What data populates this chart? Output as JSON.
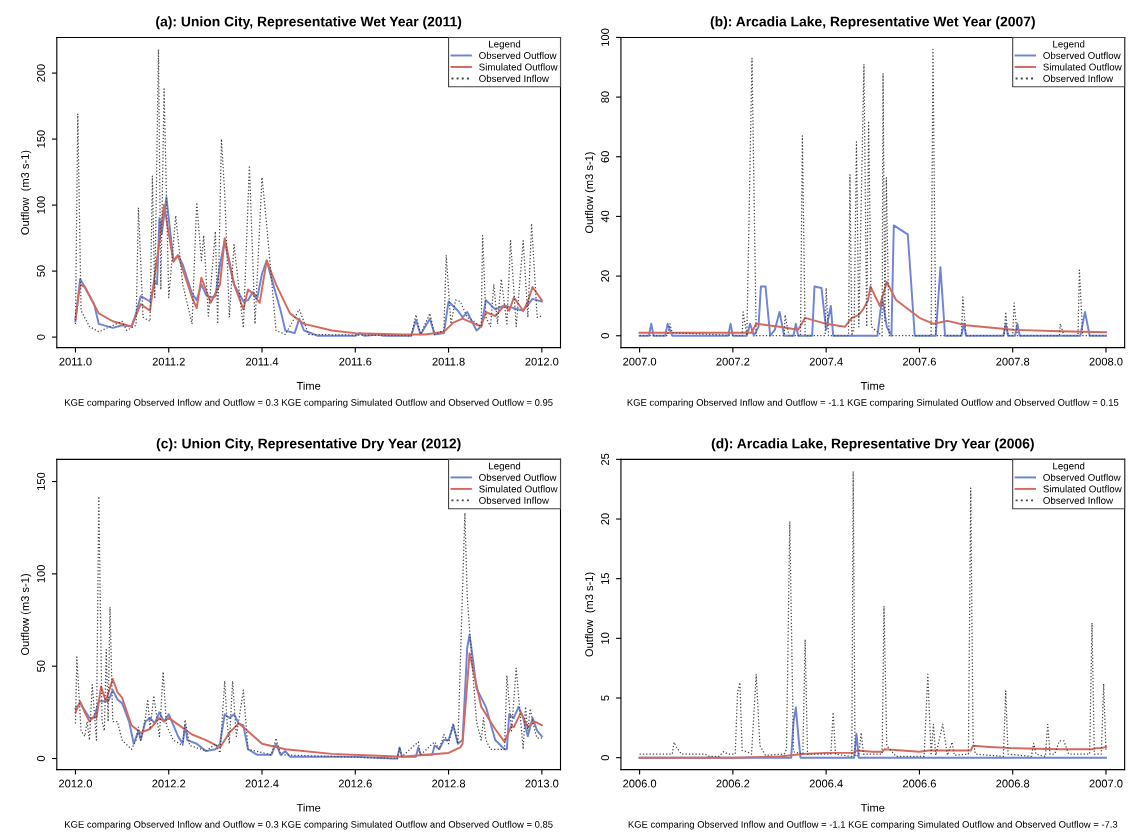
{
  "chart_data": [
    {
      "type": "line",
      "title": "(a): Union City, Representative Wet Year (2011)",
      "xlabel": "Time",
      "ylabel": "Outflow  (m3 s-1)",
      "legend_title": "Legend",
      "legend": "top right",
      "grid": false,
      "annotations": [
        "KGE comparing Observed Inflow and Outflow = 0.3 KGE comparing Simulated Outflow and Observed Outflow = 0.95"
      ],
      "xlim": [
        2010.96,
        2012.04
      ],
      "ylim": [
        -8,
        227
      ],
      "yticks": [
        0,
        50,
        100,
        150,
        200
      ],
      "xticks": [
        {
          "value": 2011.0,
          "label": "2011.0"
        },
        {
          "value": 2011.2,
          "label": "2011.2"
        },
        {
          "value": 2011.4,
          "label": "2011.4"
        },
        {
          "value": 2011.6,
          "label": "2011.6"
        },
        {
          "value": 2011.8,
          "label": "2011.8"
        },
        {
          "value": 2012.0,
          "label": "2012.0"
        }
      ],
      "series": [
        {
          "name": "Observed Outflow",
          "color": "#6f84d6",
          "line_style": "solid",
          "x": [
            2011.0,
            2011.01,
            2011.02,
            2011.04,
            2011.05,
            2011.08,
            2011.1,
            2011.12,
            2011.13,
            2011.14,
            2011.16,
            2011.17,
            2011.175,
            2011.18,
            2011.185,
            2011.195,
            2011.21,
            2011.22,
            2011.23,
            2011.25,
            2011.26,
            2011.27,
            2011.28,
            2011.29,
            2011.3,
            2011.31,
            2011.32,
            2011.33,
            2011.34,
            2011.36,
            2011.37,
            2011.38,
            2011.39,
            2011.4,
            2011.41,
            2011.42,
            2011.44,
            2011.45,
            2011.47,
            2011.48,
            2011.49,
            2011.52,
            2011.6,
            2011.61,
            2011.62,
            2011.65,
            2011.66,
            2011.72,
            2011.73,
            2011.74,
            2011.76,
            2011.77,
            2011.79,
            2011.8,
            2011.82,
            2011.83,
            2011.84,
            2011.86,
            2011.87,
            2011.88,
            2011.9,
            2011.92,
            2011.96,
            2011.98,
            2012.0
          ],
          "values": [
            12,
            44,
            38,
            25,
            10,
            7,
            9,
            8,
            18,
            31,
            27,
            42,
            40,
            90,
            78,
            106,
            58,
            62,
            55,
            33,
            28,
            40,
            32,
            30,
            31,
            55,
            73,
            55,
            40,
            27,
            28,
            34,
            30,
            48,
            58,
            45,
            20,
            5,
            3,
            14,
            5,
            1,
            1,
            3,
            1,
            2,
            1,
            1,
            13,
            2,
            14,
            2,
            3,
            27,
            20,
            15,
            19,
            5,
            8,
            28,
            21,
            24,
            20,
            29,
            27
          ]
        },
        {
          "name": "Simulated Outflow",
          "color": "#d46a5f",
          "line_style": "solid",
          "x": [
            2011.0,
            2011.01,
            2011.02,
            2011.05,
            2011.08,
            2011.12,
            2011.14,
            2011.16,
            2011.17,
            2011.18,
            2011.19,
            2011.21,
            2011.22,
            2011.25,
            2011.26,
            2011.27,
            2011.29,
            2011.31,
            2011.32,
            2011.34,
            2011.36,
            2011.37,
            2011.38,
            2011.395,
            2011.41,
            2011.43,
            2011.46,
            2011.49,
            2011.55,
            2011.6,
            2011.7,
            2011.75,
            2011.79,
            2011.81,
            2011.83,
            2011.87,
            2011.88,
            2011.9,
            2011.92,
            2011.93,
            2011.94,
            2011.96,
            2011.97,
            2011.98,
            2012.0
          ],
          "values": [
            14,
            40,
            38,
            18,
            12,
            8,
            25,
            20,
            47,
            72,
            100,
            57,
            62,
            30,
            22,
            45,
            26,
            40,
            75,
            40,
            21,
            36,
            33,
            26,
            58,
            40,
            18,
            10,
            5,
            3,
            2,
            2,
            4,
            11,
            14,
            8,
            19,
            16,
            24,
            20,
            30,
            20,
            27,
            38,
            28
          ]
        },
        {
          "name": "Observed Inflow",
          "color": "#444444",
          "line_style": "dotted",
          "x": [
            2011.0,
            2011.005,
            2011.012,
            2011.03,
            2011.05,
            2011.1,
            2011.11,
            2011.13,
            2011.135,
            2011.145,
            2011.16,
            2011.165,
            2011.17,
            2011.178,
            2011.183,
            2011.19,
            2011.2,
            2011.215,
            2011.23,
            2011.25,
            2011.26,
            2011.27,
            2011.275,
            2011.285,
            2011.3,
            2011.305,
            2011.313,
            2011.32,
            2011.33,
            2011.34,
            2011.36,
            2011.373,
            2011.385,
            2011.4,
            2011.41,
            2011.43,
            2011.45,
            2011.48,
            2011.5,
            2011.72,
            2011.73,
            2011.74,
            2011.76,
            2011.77,
            2011.79,
            2011.795,
            2011.805,
            2011.815,
            2011.825,
            2011.84,
            2011.87,
            2011.873,
            2011.88,
            2011.89,
            2011.897,
            2011.905,
            2011.913,
            2011.925,
            2011.933,
            2011.945,
            2011.96,
            2011.97,
            2011.978,
            2011.99,
            2012.0
          ],
          "values": [
            10,
            169,
            20,
            8,
            4,
            12,
            5,
            9,
            98,
            15,
            12,
            122,
            30,
            218,
            36,
            188,
            30,
            92,
            40,
            10,
            102,
            58,
            77,
            16,
            80,
            10,
            150,
            109,
            15,
            70,
            7,
            130,
            10,
            121,
            85,
            5,
            2,
            21,
            2,
            1,
            17,
            2,
            18,
            2,
            5,
            62,
            10,
            28,
            27,
            15,
            8,
            77,
            15,
            8,
            40,
            10,
            44,
            10,
            73,
            8,
            73,
            15,
            86,
            15,
            16
          ]
        }
      ]
    },
    {
      "type": "line",
      "title": "(b): Arcadia Lake, Representative Wet Year (2007)",
      "xlabel": "Time",
      "ylabel": "Outflow (m3 s-1)",
      "legend_title": "Legend",
      "legend": "top right",
      "grid": false,
      "annotations": [
        "KGE comparing Observed Inflow and Outflow = -1.1 KGE comparing Simulated Outflow and Observed Outflow = 0.15"
      ],
      "xlim": [
        2006.96,
        2008.04
      ],
      "ylim": [
        -4,
        100
      ],
      "yticks": [
        0,
        20,
        40,
        60,
        80,
        100
      ],
      "xticks": [
        {
          "value": 2007.0,
          "label": "2007.0"
        },
        {
          "value": 2007.2,
          "label": "2007.2"
        },
        {
          "value": 2007.4,
          "label": "2007.4"
        },
        {
          "value": 2007.6,
          "label": "2007.6"
        },
        {
          "value": 2007.8,
          "label": "2007.8"
        },
        {
          "value": 2008.0,
          "label": "2008.0"
        }
      ],
      "series": [
        {
          "name": "Observed Outflow",
          "color": "#6f84d6",
          "line_style": "solid",
          "x": [
            2007.0,
            2007.02,
            2007.025,
            2007.03,
            2007.055,
            2007.06,
            2007.07,
            2007.19,
            2007.195,
            2007.2,
            2007.23,
            2007.237,
            2007.245,
            2007.255,
            2007.26,
            2007.27,
            2007.28,
            2007.29,
            2007.3,
            2007.31,
            2007.33,
            2007.335,
            2007.34,
            2007.37,
            2007.375,
            2007.39,
            2007.4,
            2007.41,
            2007.415,
            2007.51,
            2007.52,
            2007.53,
            2007.54,
            2007.545,
            2007.575,
            2007.59,
            2007.635,
            2007.645,
            2007.655,
            2007.69,
            2007.695,
            2007.7,
            2007.78,
            2007.785,
            2007.79,
            2007.805,
            2007.81,
            2007.815,
            2007.945,
            2007.955,
            2007.965,
            2008.0
          ],
          "values": [
            0,
            0,
            4,
            0,
            0,
            4,
            0,
            0,
            4,
            0,
            0,
            4,
            0,
            3,
            16.5,
            16.5,
            0,
            2,
            8,
            0,
            0,
            4,
            0,
            0,
            16.5,
            16,
            2,
            10,
            0,
            0,
            13,
            3,
            0,
            37,
            34,
            0,
            0,
            23,
            0,
            0,
            4,
            0,
            0,
            4,
            0,
            0,
            4,
            0,
            0,
            8,
            0,
            0
          ]
        },
        {
          "name": "Simulated Outflow",
          "color": "#d46a5f",
          "line_style": "solid",
          "x": [
            2007.0,
            2007.24,
            2007.25,
            2007.3,
            2007.34,
            2007.355,
            2007.4,
            2007.44,
            2007.455,
            2007.47,
            2007.48,
            2007.49,
            2007.495,
            2007.515,
            2007.53,
            2007.55,
            2007.6,
            2007.63,
            2007.66,
            2007.7,
            2007.8,
            2007.9,
            2008.0
          ],
          "values": [
            1,
            1,
            4,
            3,
            2,
            6,
            4,
            3,
            6,
            7,
            9,
            12,
            16.5,
            10,
            18,
            12,
            6,
            4,
            5,
            3.5,
            2,
            1.5,
            1.2
          ]
        },
        {
          "name": "Observed Inflow",
          "color": "#444444",
          "line_style": "dotted",
          "x": [
            2007.0,
            2007.06,
            2007.065,
            2007.07,
            2007.22,
            2007.222,
            2007.23,
            2007.241,
            2007.25,
            2007.31,
            2007.312,
            2007.32,
            2007.345,
            2007.349,
            2007.355,
            2007.398,
            2007.4,
            2007.405,
            2007.448,
            2007.451,
            2007.455,
            2007.46,
            2007.465,
            2007.47,
            2007.481,
            2007.487,
            2007.491,
            2007.497,
            2007.52,
            2007.522,
            2007.526,
            2007.529,
            2007.535,
            2007.625,
            2007.629,
            2007.635,
            2007.69,
            2007.693,
            2007.7,
            2007.782,
            2007.785,
            2007.79,
            2007.8,
            2007.803,
            2007.81,
            2007.9,
            2007.902,
            2007.91,
            2007.94,
            2007.943,
            2007.95,
            2008.0
          ],
          "values": [
            0,
            0,
            4,
            1,
            0,
            8,
            0,
            93,
            0,
            0,
            7,
            0,
            0,
            67,
            0,
            0,
            16,
            0,
            0,
            54,
            0,
            3,
            65,
            3,
            91,
            3,
            72,
            3,
            0,
            88,
            5,
            53,
            0,
            0,
            96,
            0,
            0,
            13,
            0,
            0,
            8,
            0,
            0,
            11,
            0,
            0,
            4,
            0,
            0,
            22,
            0,
            0
          ]
        }
      ]
    },
    {
      "type": "line",
      "title": "(c): Union City, Representative Dry Year (2012)",
      "xlabel": "Time",
      "ylabel": "Outflow (m3 s-1)",
      "legend_title": "Legend",
      "legend": "top right",
      "grid": false,
      "annotations": [
        "KGE comparing Observed Inflow and Outflow = 0.3 KGE comparing Simulated Outflow and Observed Outflow = 0.85"
      ],
      "xlim": [
        2011.96,
        2013.04
      ],
      "ylim": [
        -6,
        162
      ],
      "yticks": [
        0,
        50,
        100,
        150
      ],
      "xticks": [
        {
          "value": 2012.0,
          "label": "2012.0"
        },
        {
          "value": 2012.2,
          "label": "2012.2"
        },
        {
          "value": 2012.4,
          "label": "2012.4"
        },
        {
          "value": 2012.6,
          "label": "2012.6"
        },
        {
          "value": 2012.8,
          "label": "2012.8"
        },
        {
          "value": 2013.0,
          "label": "2013.0"
        }
      ],
      "series": [
        {
          "name": "Observed Outflow",
          "color": "#6f84d6",
          "line_style": "solid",
          "x": [
            2012.0,
            2012.01,
            2012.03,
            2012.04,
            2012.05,
            2012.07,
            2012.08,
            2012.09,
            2012.1,
            2012.115,
            2012.125,
            2012.135,
            2012.14,
            2012.15,
            2012.16,
            2012.17,
            2012.18,
            2012.19,
            2012.2,
            2012.22,
            2012.23,
            2012.235,
            2012.24,
            2012.26,
            2012.28,
            2012.3,
            2012.31,
            2012.32,
            2012.33,
            2012.34,
            2012.35,
            2012.36,
            2012.37,
            2012.39,
            2012.42,
            2012.43,
            2012.44,
            2012.45,
            2012.46,
            2012.5,
            2012.6,
            2012.68,
            2012.69,
            2012.695,
            2012.7,
            2012.73,
            2012.735,
            2012.74,
            2012.765,
            2012.77,
            2012.78,
            2012.79,
            2012.8,
            2012.81,
            2012.82,
            2012.83,
            2012.84,
            2012.845,
            2012.85,
            2012.86,
            2012.88,
            2012.9,
            2012.92,
            2012.925,
            2012.93,
            2012.94,
            2012.95,
            2012.96,
            2012.97,
            2012.98,
            2012.99,
            2013.0
          ],
          "values": [
            27,
            30,
            22,
            22,
            31,
            31,
            37,
            32,
            30,
            20,
            8,
            15,
            10,
            20,
            22,
            19,
            25,
            20,
            24,
            12,
            8,
            18,
            10,
            8,
            4,
            5,
            8,
            24,
            22,
            24,
            19,
            18,
            5,
            2,
            2,
            8,
            2,
            4,
            1,
            1,
            1,
            0,
            0,
            6,
            1,
            1,
            6,
            2,
            2,
            7,
            5,
            10,
            10,
            18,
            8,
            10,
            60,
            67,
            58,
            38,
            28,
            10,
            5,
            5,
            24,
            22,
            28,
            22,
            12,
            22,
            15,
            12
          ]
        },
        {
          "name": "Simulated Outflow",
          "color": "#d46a5f",
          "line_style": "solid",
          "x": [
            2012.0,
            2012.01,
            2012.02,
            2012.03,
            2012.04,
            2012.045,
            2012.055,
            2012.065,
            2012.08,
            2012.09,
            2012.1,
            2012.12,
            2012.14,
            2012.16,
            2012.18,
            2012.19,
            2012.2,
            2012.25,
            2012.28,
            2012.31,
            2012.33,
            2012.35,
            2012.36,
            2012.4,
            2012.45,
            2012.55,
            2012.65,
            2012.7,
            2012.8,
            2012.825,
            2012.83,
            2012.845,
            2012.87,
            2012.9,
            2012.92,
            2012.935,
            2012.94,
            2012.955,
            2012.97,
            2012.985,
            2013.0
          ],
          "values": [
            25,
            31,
            25,
            20,
            23,
            22,
            39,
            31,
            43,
            36,
            33,
            18,
            14,
            16,
            22,
            20,
            22,
            13,
            10,
            6,
            14,
            19,
            17,
            8,
            5,
            2.5,
            1.5,
            1,
            3,
            6,
            8,
            57,
            28,
            16,
            9,
            18,
            17,
            25,
            17,
            20,
            18
          ]
        },
        {
          "name": "Observed Inflow",
          "color": "#444444",
          "line_style": "dotted",
          "x": [
            2012.0,
            2012.003,
            2012.012,
            2012.02,
            2012.025,
            2012.03,
            2012.036,
            2012.045,
            2012.05,
            2012.057,
            2012.062,
            2012.066,
            2012.07,
            2012.074,
            2012.08,
            2012.09,
            2012.1,
            2012.12,
            2012.13,
            2012.135,
            2012.14,
            2012.15,
            2012.155,
            2012.16,
            2012.168,
            2012.18,
            2012.188,
            2012.195,
            2012.21,
            2012.23,
            2012.235,
            2012.245,
            2012.27,
            2012.28,
            2012.3,
            2012.31,
            2012.32,
            2012.325,
            2012.33,
            2012.337,
            2012.345,
            2012.36,
            2012.37,
            2012.42,
            2012.43,
            2012.44,
            2012.69,
            2012.695,
            2012.7,
            2012.735,
            2012.74,
            2012.77,
            2012.78,
            2012.79,
            2012.8,
            2012.81,
            2012.82,
            2012.835,
            2012.84,
            2012.845,
            2012.86,
            2012.87,
            2012.875,
            2012.88,
            2012.89,
            2012.92,
            2012.925,
            2012.935,
            2012.945,
            2012.96,
            2012.965,
            2012.97,
            2012.975,
            2012.985,
            2012.99,
            2013.0
          ],
          "values": [
            19,
            55,
            15,
            12,
            20,
            10,
            40,
            10,
            142,
            20,
            15,
            59,
            20,
            82,
            20,
            20,
            10,
            5,
            10,
            17,
            10,
            22,
            32,
            16,
            34,
            12,
            47,
            18,
            10,
            7,
            21,
            7,
            5,
            4,
            8,
            3,
            42,
            20,
            8,
            42,
            12,
            37,
            5,
            2,
            11,
            2,
            0,
            6,
            1,
            9,
            2,
            9,
            5,
            13,
            8,
            19,
            8,
            133,
            88,
            70,
            20,
            10,
            22,
            10,
            5,
            5,
            45,
            15,
            49,
            5,
            28,
            15,
            27,
            15,
            11,
            11
          ]
        }
      ]
    },
    {
      "type": "line",
      "title": "(d): Arcadia Lake, Representative Dry Year (2006)",
      "xlabel": "Time",
      "ylabel": "Outflow  (m3 s-1)",
      "legend_title": "Legend",
      "legend": "top right",
      "grid": false,
      "annotations": [
        "KGE comparing Observed Inflow and Outflow = -1.1 KGE comparing Simulated Outflow and Observed Outflow = -7.3"
      ],
      "xlim": [
        2005.96,
        2007.04
      ],
      "ylim": [
        -1,
        25
      ],
      "yticks": [
        0,
        5,
        10,
        15,
        20,
        25
      ],
      "xticks": [
        {
          "value": 2006.0,
          "label": "2006.0"
        },
        {
          "value": 2006.2,
          "label": "2006.2"
        },
        {
          "value": 2006.4,
          "label": "2006.4"
        },
        {
          "value": 2006.6,
          "label": "2006.6"
        },
        {
          "value": 2006.8,
          "label": "2006.8"
        },
        {
          "value": 2007.0,
          "label": "2007.0"
        }
      ],
      "series": [
        {
          "name": "Observed Outflow",
          "color": "#6f84d6",
          "line_style": "solid",
          "x": [
            2006.0,
            2006.325,
            2006.33,
            2006.335,
            2006.34,
            2006.345,
            2006.46,
            2006.465,
            2006.47,
            2007.0
          ],
          "values": [
            0,
            0,
            3,
            4.2,
            2,
            0,
            0,
            2,
            0,
            0
          ]
        },
        {
          "name": "Simulated Outflow",
          "color": "#d46a5f",
          "line_style": "solid",
          "x": [
            2006.0,
            2006.2,
            2006.3,
            2006.35,
            2006.4,
            2006.46,
            2006.465,
            2006.5,
            2006.52,
            2006.525,
            2006.6,
            2006.62,
            2006.7,
            2006.71,
            2006.715,
            2006.75,
            2006.8,
            2006.9,
            2006.97,
            2006.98,
            2006.99,
            2007.0
          ],
          "values": [
            0,
            0,
            0.1,
            0.3,
            0.4,
            0.4,
            0.6,
            0.5,
            0.5,
            0.7,
            0.5,
            0.6,
            0.6,
            0.6,
            1.0,
            0.9,
            0.8,
            0.7,
            0.7,
            0.8,
            0.8,
            0.9
          ]
        },
        {
          "name": "Observed Inflow",
          "color": "#444444",
          "line_style": "dotted",
          "x": [
            2006.0,
            2006.07,
            2006.074,
            2006.08,
            2006.09,
            2006.14,
            2006.15,
            2006.17,
            2006.18,
            2006.19,
            2006.205,
            2006.21,
            2006.215,
            2006.22,
            2006.23,
            2006.24,
            2006.25,
            2006.258,
            2006.27,
            2006.31,
            2006.315,
            2006.322,
            2006.33,
            2006.35,
            2006.355,
            2006.36,
            2006.41,
            2006.415,
            2006.42,
            2006.455,
            2006.458,
            2006.462,
            2006.47,
            2006.475,
            2006.48,
            2006.52,
            2006.524,
            2006.53,
            2006.55,
            2006.61,
            2006.618,
            2006.625,
            2006.63,
            2006.635,
            2006.65,
            2006.66,
            2006.67,
            2006.675,
            2006.705,
            2006.71,
            2006.715,
            2006.72,
            2006.78,
            2006.785,
            2006.79,
            2006.84,
            2006.845,
            2006.85,
            2006.87,
            2006.875,
            2006.88,
            2006.89,
            2006.9,
            2006.91,
            2006.92,
            2006.965,
            2006.97,
            2006.975,
            2006.99,
            2006.995,
            2007.0
          ],
          "values": [
            0.3,
            0.3,
            1.3,
            0.8,
            0.3,
            0.3,
            0.1,
            0.1,
            0.5,
            0.3,
            0.3,
            5.5,
            6.3,
            0.6,
            0.5,
            0.3,
            7,
            1,
            0.2,
            0.3,
            0.7,
            19.8,
            0.5,
            0.3,
            9.9,
            0.3,
            0.3,
            3.8,
            0.3,
            0.1,
            24,
            0.1,
            0.2,
            2.1,
            0.3,
            0.3,
            12.7,
            1,
            0.1,
            0.1,
            7,
            0.2,
            2.8,
            0.2,
            2.8,
            0.2,
            1.3,
            0.2,
            0.3,
            22.6,
            1.5,
            0.3,
            0.1,
            5.6,
            0.3,
            0.1,
            1.2,
            0.3,
            0.1,
            2.8,
            0.3,
            0.3,
            1.4,
            1.4,
            0.3,
            0.3,
            11.3,
            0.3,
            0.3,
            6.2,
            0.5
          ]
        }
      ]
    }
  ]
}
